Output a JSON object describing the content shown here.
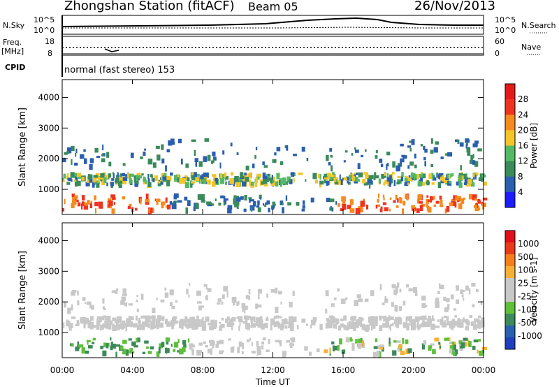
{
  "header": {
    "station": "Zhongshan Station (fitACF)",
    "beam": "Beam 05",
    "date": "26/Nov/2013"
  },
  "status_panels": {
    "nsky_label": "N.Sky",
    "nsky_ticks": [
      "10^5",
      "10^0"
    ],
    "nsearch_label": "N.Search",
    "nsearch_ticks": [
      "10^5",
      "10^0"
    ],
    "freq_label": "Freq.",
    "freq_unit": "[MHz]",
    "freq_ticks": [
      "18",
      "8"
    ],
    "nave_label": "Nave",
    "nave_ticks": [
      "60",
      "0"
    ],
    "cpid_label": "CPID",
    "cpid_value": "normal (fast stereo) 153"
  },
  "chart_data": [
    {
      "type": "heatmap",
      "name": "power",
      "ylabel": "Slant Range [km]",
      "yticks": [
        "1000",
        "2000",
        "3000",
        "4000"
      ],
      "ylim": [
        180,
        4580
      ],
      "colorbar_label": "Power [dB]",
      "colorbar_ticks": [
        "4",
        "8",
        "12",
        "16",
        "20",
        "24",
        "28"
      ],
      "colorbar_colors": [
        "#1c1cff",
        "#2a5fb0",
        "#3a8a5a",
        "#55b866",
        "#f3c52a",
        "#f58a1f",
        "#ee3320",
        "#e41a1a"
      ]
    },
    {
      "type": "heatmap",
      "name": "velocity",
      "ylabel": "Slant Range [km]",
      "yticks": [
        "1000",
        "2000",
        "3000",
        "4000"
      ],
      "ylim": [
        180,
        4580
      ],
      "colorbar_label": "Velocity [m s-1]",
      "colorbar_ticks": [
        "1000",
        "500",
        "100",
        "25",
        "-25",
        "-100",
        "-500",
        "-1000"
      ],
      "colorbar_colors": [
        "#1f3fbf",
        "#2a60b0",
        "#3c8a5a",
        "#5fbf3a",
        "#c8c8c8",
        "#c8c8c8",
        "#f5b035",
        "#f57f1a",
        "#e63a1a",
        "#e0101a"
      ]
    }
  ],
  "xaxis": {
    "label": "Time UT",
    "ticks": [
      "00:00",
      "04:00",
      "08:00",
      "12:00",
      "16:00",
      "20:00",
      "00:00"
    ]
  }
}
